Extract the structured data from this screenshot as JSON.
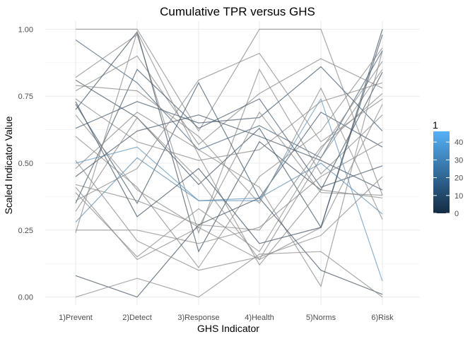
{
  "chart_data": {
    "type": "line",
    "title": "Cumulative TPR versus GHS",
    "xlabel": "GHS Indicator",
    "ylabel": "Scaled Indicator Value",
    "categories": [
      "1)Prevent",
      "2)Detect",
      "3)Response",
      "4)Health",
      "5)Norms",
      "6)Risk"
    ],
    "ylim": [
      -0.03,
      1.03
    ],
    "yticks": [
      "0.00",
      "0.25",
      "0.50",
      "0.75",
      "1.00"
    ],
    "grid": true,
    "legend": {
      "title": "1",
      "placement": "right",
      "range": [
        0,
        46
      ],
      "ticks": [
        "0",
        "10",
        "20",
        "30",
        "40"
      ],
      "low_color": "#132B43",
      "high_color": "#56B1F7"
    },
    "line_color": "#8c8c8c",
    "series": [
      {
        "color_value": 0,
        "values": [
          1.0,
          1.0,
          0.62,
          1.0,
          1.0,
          0.38
        ]
      },
      {
        "color_value": 12,
        "values": [
          0.96,
          0.8,
          0.55,
          0.64,
          0.52,
          0.92
        ]
      },
      {
        "color_value": 0,
        "values": [
          0.82,
          0.98,
          0.24,
          0.85,
          0.46,
          0.68
        ]
      },
      {
        "color_value": 3,
        "values": [
          0.81,
          0.67,
          0.42,
          0.63,
          0.26,
          1.0
        ]
      },
      {
        "color_value": 0,
        "values": [
          0.77,
          0.9,
          0.57,
          0.76,
          0.89,
          0.78
        ]
      },
      {
        "color_value": 0,
        "values": [
          0.74,
          0.58,
          0.51,
          0.55,
          0.73,
          0.8
        ]
      },
      {
        "color_value": 5,
        "values": [
          0.72,
          0.35,
          0.8,
          0.37,
          0.69,
          0.56
        ]
      },
      {
        "color_value": 2,
        "values": [
          0.7,
          0.99,
          0.17,
          0.58,
          0.4,
          0.84
        ]
      },
      {
        "color_value": 0,
        "values": [
          0.68,
          0.4,
          0.26,
          0.14,
          0.52,
          0.85
        ]
      },
      {
        "color_value": 7,
        "values": [
          0.63,
          0.73,
          0.65,
          0.67,
          0.86,
          0.62
        ]
      },
      {
        "color_value": 0,
        "values": [
          0.6,
          0.41,
          0.11,
          0.45,
          0.62,
          0.93
        ]
      },
      {
        "color_value": 40,
        "values": [
          0.5,
          0.56,
          0.36,
          0.36,
          0.74,
          0.06
        ]
      },
      {
        "color_value": 0,
        "values": [
          0.48,
          0.69,
          0.55,
          0.41,
          0.04,
          0.92
        ]
      },
      {
        "color_value": 4,
        "values": [
          0.45,
          0.62,
          0.68,
          0.6,
          0.51,
          0.4
        ]
      },
      {
        "color_value": 0,
        "values": [
          0.42,
          0.36,
          0.27,
          0.25,
          0.56,
          0.76
        ]
      },
      {
        "color_value": 0,
        "values": [
          0.39,
          0.15,
          0.33,
          0.17,
          0.55,
          0.88
        ]
      },
      {
        "color_value": 6,
        "values": [
          0.35,
          0.85,
          0.63,
          0.74,
          0.41,
          0.49
        ]
      },
      {
        "color_value": 0,
        "values": [
          0.32,
          0.67,
          0.44,
          0.14,
          0.26,
          0.72
        ]
      },
      {
        "color_value": 35,
        "values": [
          0.28,
          0.52,
          0.36,
          0.37,
          0.5,
          0.31
        ]
      },
      {
        "color_value": 0,
        "values": [
          0.25,
          0.25,
          0.2,
          0.26,
          0.45,
          0.58
        ]
      },
      {
        "color_value": 0,
        "values": [
          0.24,
          0.99,
          0.53,
          0.12,
          0.4,
          0.37
        ]
      },
      {
        "color_value": 2,
        "values": [
          0.08,
          0.0,
          0.27,
          0.37,
          0.1,
          0.01
        ]
      },
      {
        "color_value": 0,
        "values": [
          0.0,
          0.07,
          0.0,
          0.16,
          0.17,
          0.0
        ]
      },
      {
        "color_value": 0,
        "values": [
          0.51,
          0.21,
          0.1,
          0.15,
          0.23,
          0.45
        ]
      },
      {
        "color_value": 0,
        "values": [
          0.41,
          0.14,
          0.26,
          0.69,
          0.39,
          0.38
        ]
      },
      {
        "color_value": 3,
        "values": [
          0.73,
          0.3,
          0.48,
          0.2,
          0.26,
          0.98
        ]
      },
      {
        "color_value": 0,
        "values": [
          0.79,
          0.77,
          0.6,
          0.35,
          0.78,
          0.29
        ]
      },
      {
        "color_value": 0,
        "values": [
          0.36,
          0.48,
          0.81,
          0.91,
          0.58,
          0.74
        ]
      }
    ]
  }
}
